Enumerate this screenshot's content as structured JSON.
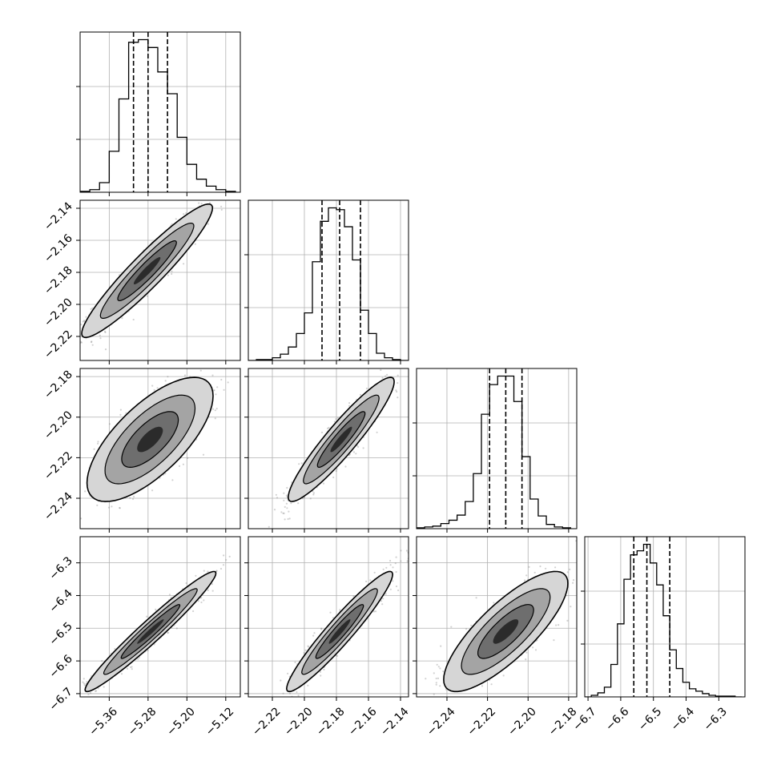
{
  "chart_data": {
    "type": "corner",
    "grid": true,
    "parameters": [
      {
        "index": 0,
        "range": [
          -5.42,
          -5.09
        ],
        "ticks": [
          -5.36,
          -5.28,
          -5.2,
          -5.12
        ],
        "tick_labels": [
          "−5.36",
          "−5.28",
          "−5.20",
          "−5.12"
        ],
        "quantiles": [
          -5.31,
          -5.28,
          -5.24
        ]
      },
      {
        "index": 1,
        "range": [
          -2.235,
          -2.135
        ],
        "ticks": [
          -2.22,
          -2.2,
          -2.18,
          -2.16,
          -2.14
        ],
        "tick_labels": [
          "−2.22",
          "−2.20",
          "−2.18",
          "−2.16",
          "−2.14"
        ],
        "quantiles": [
          -2.189,
          -2.178,
          -2.165
        ]
      },
      {
        "index": 2,
        "range": [
          -2.255,
          -2.176
        ],
        "ticks": [
          -2.24,
          -2.22,
          -2.2,
          -2.18
        ],
        "tick_labels": [
          "−2.24",
          "−2.22",
          "−2.20",
          "−2.18"
        ],
        "quantiles": [
          -2.219,
          -2.211,
          -2.203
        ]
      },
      {
        "index": 3,
        "range": [
          -6.71,
          -6.22
        ],
        "ticks": [
          -6.7,
          -6.6,
          -6.5,
          -6.4,
          -6.3
        ],
        "tick_labels": [
          "−6.7",
          "−6.6",
          "−6.5",
          "−6.4",
          "−6.3"
        ],
        "quantiles": [
          -6.56,
          -6.52,
          -6.45
        ]
      }
    ],
    "histograms": [
      {
        "param": 0,
        "bin_edges": [
          -5.42,
          -5.4,
          -5.38,
          -5.36,
          -5.34,
          -5.32,
          -5.3,
          -5.28,
          -5.26,
          -5.24,
          -5.22,
          -5.2,
          -5.18,
          -5.16,
          -5.14,
          -5.12,
          -5.1
        ],
        "counts": [
          1,
          3,
          11,
          47,
          107,
          172,
          175,
          166,
          138,
          113,
          63,
          32,
          15,
          7,
          3,
          1
        ]
      },
      {
        "param": 1,
        "bin_edges": [
          -2.235,
          -2.23,
          -2.225,
          -2.22,
          -2.215,
          -2.21,
          -2.205,
          -2.2,
          -2.195,
          -2.19,
          -2.185,
          -2.18,
          -2.175,
          -2.17,
          -2.165,
          -2.16,
          -2.155,
          -2.15,
          -2.145,
          -2.14,
          -2.135
        ],
        "counts": [
          0,
          1,
          1,
          3,
          7,
          15,
          30,
          53,
          110,
          155,
          170,
          168,
          149,
          112,
          56,
          30,
          8,
          3,
          1,
          0
        ]
      },
      {
        "param": 2,
        "bin_edges": [
          -2.255,
          -2.251,
          -2.247,
          -2.243,
          -2.239,
          -2.235,
          -2.231,
          -2.227,
          -2.223,
          -2.219,
          -2.215,
          -2.211,
          -2.207,
          -2.203,
          -2.199,
          -2.195,
          -2.191,
          -2.187,
          -2.183,
          -2.179
        ],
        "counts": [
          1,
          2,
          3,
          6,
          10,
          16,
          32,
          65,
          135,
          170,
          180,
          180,
          150,
          85,
          35,
          15,
          5,
          2,
          1
        ]
      },
      {
        "param": 3,
        "bin_edges": [
          -6.71,
          -6.69,
          -6.67,
          -6.65,
          -6.63,
          -6.61,
          -6.59,
          -6.57,
          -6.55,
          -6.53,
          -6.51,
          -6.49,
          -6.47,
          -6.45,
          -6.43,
          -6.41,
          -6.39,
          -6.37,
          -6.35,
          -6.33,
          -6.31,
          -6.29,
          -6.27,
          -6.25,
          -6.23
        ],
        "counts": [
          0,
          2,
          5,
          12,
          40,
          90,
          145,
          175,
          180,
          188,
          165,
          138,
          100,
          58,
          35,
          18,
          10,
          7,
          4,
          2,
          1,
          1,
          1,
          0
        ]
      }
    ],
    "pairs": [
      {
        "x": 0,
        "y": 1,
        "center": [
          -5.282,
          -2.179
        ],
        "sd": [
          0.055,
          0.017
        ],
        "corr": 0.94
      },
      {
        "x": 0,
        "y": 2,
        "center": [
          -5.276,
          -2.211
        ],
        "sd": [
          0.053,
          0.0125
        ],
        "corr": 0.7
      },
      {
        "x": 1,
        "y": 2,
        "center": [
          -2.177,
          -2.211
        ],
        "sd": [
          0.0135,
          0.0125
        ],
        "corr": 0.93
      },
      {
        "x": 0,
        "y": 3,
        "center": [
          -5.275,
          -6.51
        ],
        "sd": [
          0.055,
          0.075
        ],
        "corr": 0.97
      },
      {
        "x": 1,
        "y": 3,
        "center": [
          -2.178,
          -6.51
        ],
        "sd": [
          0.0135,
          0.075
        ],
        "corr": 0.95
      },
      {
        "x": 2,
        "y": 3,
        "center": [
          -2.211,
          -6.51
        ],
        "sd": [
          0.0125,
          0.075
        ],
        "corr": 0.8
      }
    ],
    "colors": {
      "samples": "#7f7f7f",
      "contour_fill": [
        "#d6d6d6",
        "#a4a4a4",
        "#6e6e6e",
        "#2b2b2b"
      ],
      "line": "#000000",
      "grid": "#b0b0b0",
      "background": "#ffffff"
    }
  }
}
